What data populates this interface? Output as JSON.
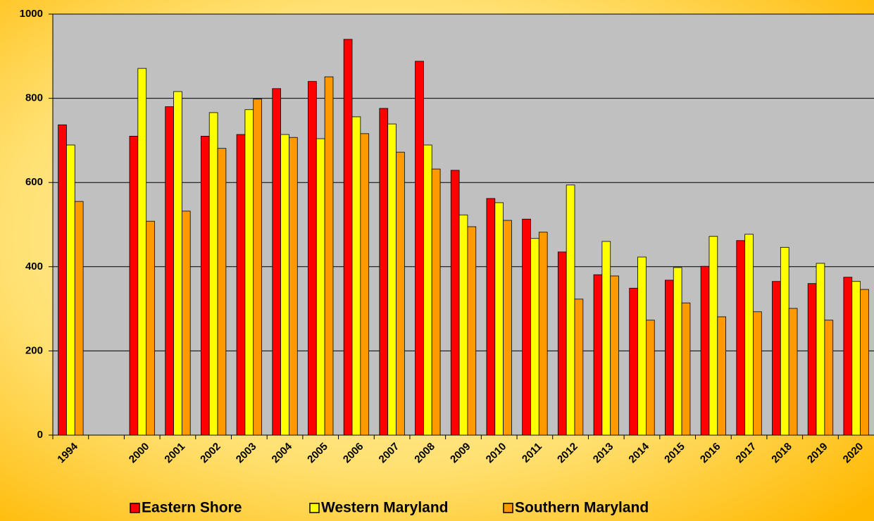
{
  "chart_data": {
    "type": "bar",
    "categories": [
      "1994",
      null,
      "2000",
      "2001",
      "2002",
      "2003",
      "2004",
      "2005",
      "2006",
      "2007",
      "2008",
      "2009",
      "2010",
      "2011",
      "2012",
      "2013",
      "2014",
      "2015",
      "2016",
      "2017",
      "2018",
      "2019",
      "2020"
    ],
    "series": [
      {
        "name": "Eastern Shore",
        "color": "#ff0000",
        "values": [
          737,
          null,
          710,
          780,
          710,
          714,
          823,
          840,
          940,
          776,
          888,
          629,
          562,
          513,
          435,
          381,
          349,
          368,
          401,
          462,
          365,
          360,
          375
        ]
      },
      {
        "name": "Western Maryland",
        "color": "#ffff00",
        "values": [
          689,
          null,
          871,
          816,
          766,
          773,
          714,
          704,
          756,
          739,
          689,
          523,
          552,
          467,
          594,
          460,
          423,
          398,
          472,
          477,
          446,
          408,
          365
        ]
      },
      {
        "name": "Southern Maryland",
        "color": "#ff9900",
        "values": [
          555,
          null,
          508,
          532,
          681,
          798,
          707,
          851,
          716,
          672,
          632,
          495,
          510,
          482,
          323,
          378,
          273,
          314,
          281,
          293,
          301,
          273,
          346
        ]
      }
    ],
    "ylim": [
      0,
      1000
    ],
    "yticks": [
      0,
      200,
      400,
      600,
      800,
      1000
    ],
    "grid": true,
    "legend": "bottom"
  }
}
